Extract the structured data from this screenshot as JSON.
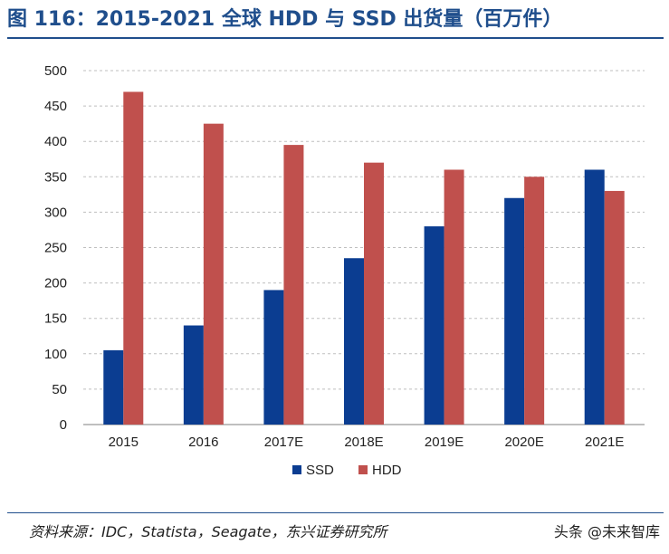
{
  "figure": {
    "title": "图 116：2015-2021 全球 HDD 与 SSD 出货量（百万件）",
    "source": "资料来源：IDC，Statista，Seagate，东兴证券研究所",
    "watermark": "头条 @未来智库"
  },
  "colors": {
    "title": "#1f4e8c",
    "ssd": "#0b3d91",
    "hdd": "#c0504d",
    "grid": "#bfbfbf",
    "axis": "#7f7f7f"
  },
  "chart_data": {
    "type": "bar",
    "title": "",
    "xlabel": "",
    "ylabel": "",
    "categories": [
      "2015",
      "2016",
      "2017E",
      "2018E",
      "2019E",
      "2020E",
      "2021E"
    ],
    "series": [
      {
        "name": "SSD",
        "values": [
          105,
          140,
          190,
          235,
          280,
          320,
          360
        ]
      },
      {
        "name": "HDD",
        "values": [
          470,
          425,
          395,
          370,
          360,
          350,
          330
        ]
      }
    ],
    "ylim": [
      0,
      500
    ],
    "yticks": [
      0,
      50,
      100,
      150,
      200,
      250,
      300,
      350,
      400,
      450,
      500
    ],
    "grid": "horizontal dashed",
    "legend": "bottom-center"
  }
}
